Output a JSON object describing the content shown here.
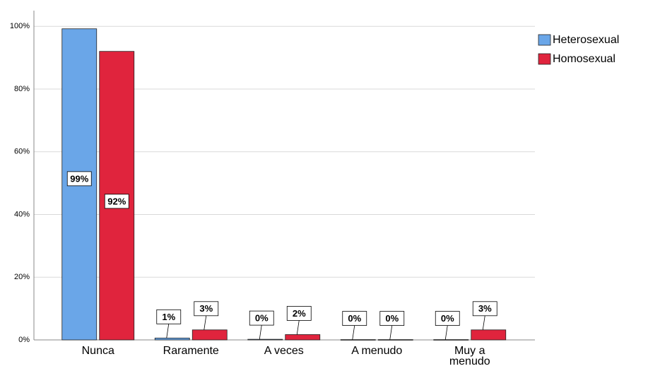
{
  "chart_data": {
    "type": "bar",
    "categories": [
      "Nunca",
      "Raramente",
      "A veces",
      "A menudo",
      "Muy a menudo"
    ],
    "series": [
      {
        "name": "Heterosexual",
        "color": "#6aa6e8",
        "values": [
          99.2,
          0.6,
          0.2,
          0.1,
          0.1
        ],
        "value_labels": [
          "99%",
          "1%",
          "0%",
          "0%",
          "0%"
        ]
      },
      {
        "name": "Homosexual",
        "color": "#e0243d",
        "values": [
          92,
          3.2,
          1.7,
          0.1,
          3.2
        ],
        "value_labels": [
          "92%",
          "3%",
          "2%",
          "0%",
          "3%"
        ]
      }
    ],
    "ylim": [
      0,
      105
    ],
    "yticks": [
      {
        "value": 0,
        "label": "0%"
      },
      {
        "value": 20,
        "label": "20%"
      },
      {
        "value": 40,
        "label": "40%"
      },
      {
        "value": 60,
        "label": "60%"
      },
      {
        "value": 80,
        "label": "80%"
      },
      {
        "value": 100,
        "label": "100%"
      }
    ],
    "grid": true,
    "legend": "right"
  }
}
